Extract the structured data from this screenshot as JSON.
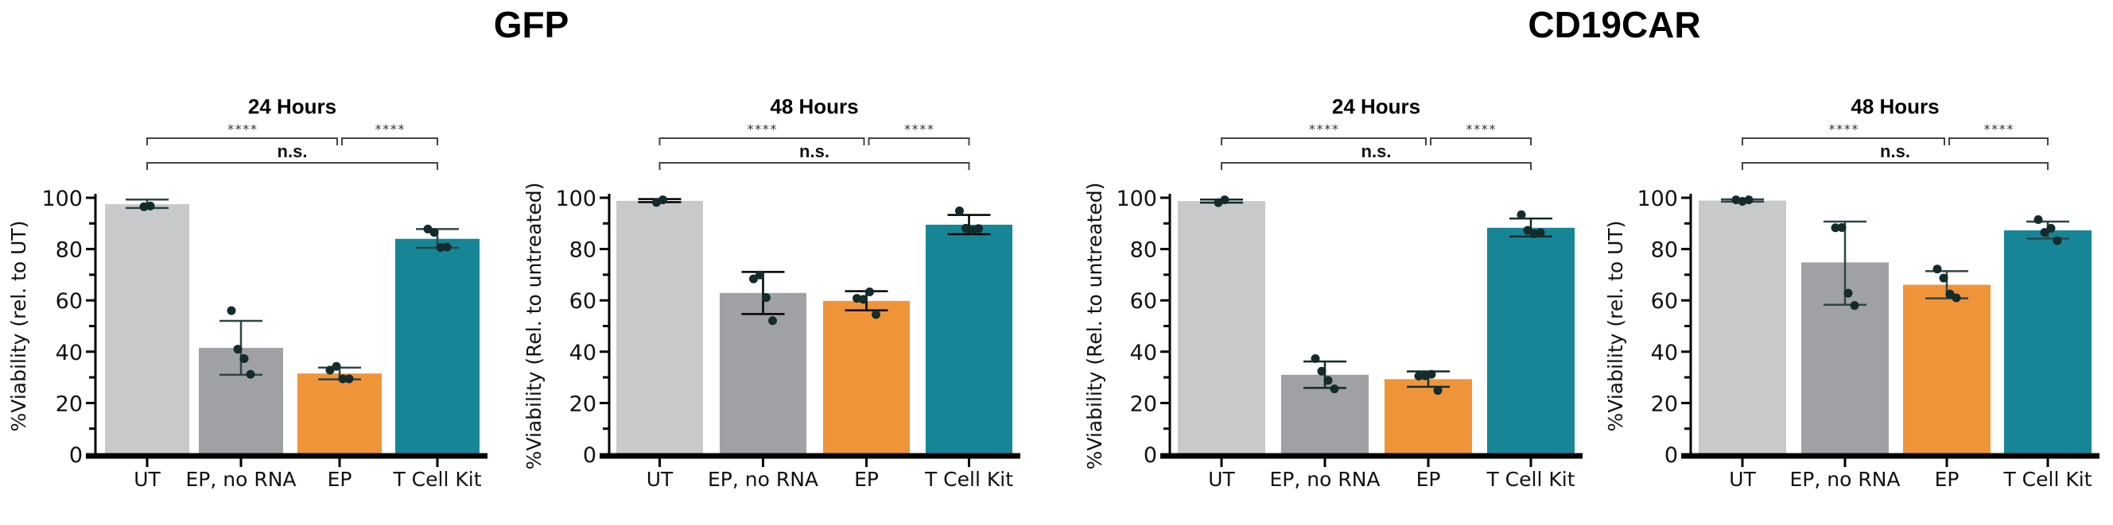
{
  "groups": [
    {
      "title": "GFP"
    },
    {
      "title": "CD19CAR"
    }
  ],
  "colors": {
    "UT": "#C8C9CB",
    "EP, no RNA": "#A0A1A4",
    "EP": "#F0943A",
    "T Cell Kit": "#168697",
    "points": "#132B2B",
    "axis": "#000000"
  },
  "chart_data": [
    {
      "type": "bar",
      "group": "GFP",
      "title": "24 Hours",
      "ylabel": "%Viability (rel. to UT)",
      "xlabel": "",
      "ylim": [
        0,
        100
      ],
      "yticks": [
        0,
        20,
        40,
        60,
        80,
        100
      ],
      "categories": [
        "UT",
        "EP, no RNA",
        "EP",
        "T Cell Kit"
      ],
      "values": [
        97.5,
        41.5,
        31.5,
        84
      ],
      "error_low": [
        96,
        31,
        29.2,
        80.5
      ],
      "error_high": [
        99.3,
        52,
        33.8,
        87.8
      ],
      "points": [
        [
          96.5,
          96.8
        ],
        [
          56,
          41,
          37.3,
          31.2
        ],
        [
          32.8,
          34.3,
          29.4,
          29.4
        ],
        [
          87.8,
          86.5,
          80.6,
          80.8
        ]
      ],
      "significance": [
        {
          "from": "UT",
          "to": "EP",
          "label": "****",
          "level": 1
        },
        {
          "from": "EP",
          "to": "T Cell Kit",
          "label": "****",
          "level": 1
        },
        {
          "from": "UT",
          "to": "T Cell Kit",
          "label": "n.s.",
          "level": 2
        }
      ],
      "grid": false
    },
    {
      "type": "bar",
      "group": "GFP",
      "title": "48 Hours",
      "ylabel": "%Viability (Rel. to untreated)",
      "xlabel": "",
      "ylim": [
        0,
        100
      ],
      "yticks": [
        0,
        20,
        40,
        60,
        80,
        100
      ],
      "categories": [
        "UT",
        "EP, no RNA",
        "EP",
        "T Cell Kit"
      ],
      "values": [
        98.8,
        62.9,
        59.8,
        89.5
      ],
      "error_low": [
        98.3,
        54.7,
        56.1,
        85.8
      ],
      "error_high": [
        99.5,
        71.1,
        63.6,
        93.3
      ],
      "points": [
        [
          98.2,
          99.2
        ],
        [
          68.4,
          69.9,
          61.1,
          52.1
        ],
        [
          60.8,
          60.4,
          63.3,
          54.5
        ],
        [
          94.9,
          88.1,
          87.4,
          88.0
        ]
      ],
      "significance": [
        {
          "from": "UT",
          "to": "EP",
          "label": "****",
          "level": 1
        },
        {
          "from": "EP",
          "to": "T Cell Kit",
          "label": "****",
          "level": 1
        },
        {
          "from": "UT",
          "to": "T Cell Kit",
          "label": "n.s.",
          "level": 2
        }
      ],
      "grid": false
    },
    {
      "type": "bar",
      "group": "CD19CAR",
      "title": "24 Hours",
      "ylabel": "%Viability (Rel. to untreated)",
      "xlabel": "",
      "ylim": [
        0,
        100
      ],
      "yticks": [
        0,
        20,
        40,
        60,
        80,
        100
      ],
      "categories": [
        "UT",
        "EP, no RNA",
        "EP",
        "T Cell Kit"
      ],
      "values": [
        98.7,
        31,
        29.3,
        88.3
      ],
      "error_low": [
        98.1,
        25.9,
        26.3,
        84.9
      ],
      "error_high": [
        99.3,
        36.2,
        32.3,
        91.9
      ],
      "points": [
        [
          98.1,
          99.2
        ],
        [
          37.3,
          32.4,
          28.8,
          25.5
        ],
        [
          30.5,
          30.6,
          31.2,
          24.9
        ],
        [
          93.4,
          87.3,
          86.0,
          86.4
        ]
      ],
      "significance": [
        {
          "from": "UT",
          "to": "EP",
          "label": "****",
          "level": 1
        },
        {
          "from": "EP",
          "to": "T Cell Kit",
          "label": "****",
          "level": 1
        },
        {
          "from": "UT",
          "to": "T Cell Kit",
          "label": "n.s.",
          "level": 2
        }
      ],
      "grid": false
    },
    {
      "type": "bar",
      "group": "CD19CAR",
      "title": "48 Hours",
      "ylabel": "%Viability (rel. to UT)",
      "xlabel": "",
      "ylim": [
        0,
        100
      ],
      "yticks": [
        0,
        20,
        40,
        60,
        80,
        100
      ],
      "categories": [
        "UT",
        "EP, no RNA",
        "EP",
        "T Cell Kit"
      ],
      "values": [
        98.9,
        74.8,
        66.1,
        87.3
      ],
      "error_low": [
        98.5,
        58.3,
        60.8,
        84.1
      ],
      "error_high": [
        99.4,
        90.7,
        71.4,
        90.7
      ],
      "points": [
        [
          99.2,
          98.6,
          99.2
        ],
        [
          88.3,
          88.4,
          62.8,
          58.0
        ],
        [
          72.2,
          68.7,
          62.5,
          61.0
        ],
        [
          91.5,
          86.5,
          88.1,
          83.3
        ]
      ],
      "significance": [
        {
          "from": "UT",
          "to": "EP",
          "label": "****",
          "level": 1
        },
        {
          "from": "EP",
          "to": "T Cell Kit",
          "label": "****",
          "level": 1
        },
        {
          "from": "UT",
          "to": "T Cell Kit",
          "label": "n.s.",
          "level": 2
        }
      ],
      "grid": false
    }
  ]
}
